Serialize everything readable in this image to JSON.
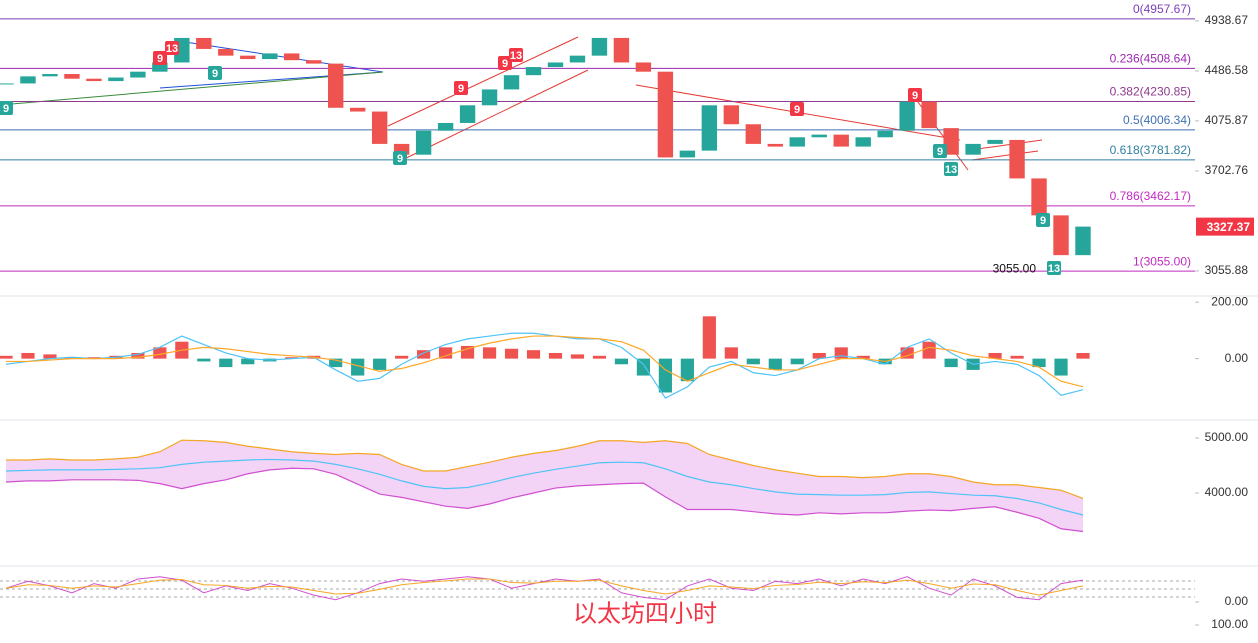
{
  "chart_data": [
    {
      "type": "candlestick",
      "log": true,
      "ylim": [
        2918,
        5141
      ],
      "yticks": [
        4938.67,
        4486.58,
        4075.87,
        3702.76,
        3055.88
      ],
      "values": [
        4380,
        4440,
        4460,
        4420,
        4400,
        4430,
        4480,
        4560,
        4780,
        4680,
        4620,
        4590,
        4640,
        4580,
        4550,
        4180,
        4150,
        3900,
        3820,
        4000,
        4060,
        4200,
        4330,
        4450,
        4520,
        4560,
        4620,
        4780,
        4560,
        4480,
        3800,
        3850,
        4200,
        4050,
        3900,
        3880,
        3950,
        3970,
        3880,
        3950,
        4000,
        4230,
        4020,
        3820,
        3900,
        3930,
        3650,
        3400,
        3150,
        3327.37
      ],
      "up_color": "#26a69a",
      "down_color": "#ef5350",
      "fib_levels": [
        {
          "value": 4957.67,
          "label": "0(4957.67)",
          "color": "#7b3fb8"
        },
        {
          "value": 4508.64,
          "label": "0.236(4508.64)",
          "color": "#9c27b0"
        },
        {
          "value": 4230.85,
          "label": "0.382(4230.85)",
          "color": "#8e3a8e"
        },
        {
          "value": 4006.34,
          "label": "0.5(4006.34)",
          "color": "#3f6fb5"
        },
        {
          "value": 3781.82,
          "label": "0.618(3781.82)",
          "color": "#2f7fa0"
        },
        {
          "value": 3462.17,
          "label": "0.786(3462.17)",
          "color": "#c02bc0"
        },
        {
          "value": 3055,
          "label": "1(3055.00)",
          "color": "#c02bc0"
        }
      ],
      "last_price": {
        "value": 3327.37,
        "label": "3327.37",
        "color": "#f23645"
      },
      "low": {
        "value": 3055,
        "label": "3055.00"
      },
      "markers": [
        {
          "label": "9",
          "color": "#f23645"
        },
        {
          "label": "13",
          "color": "#f23645"
        },
        {
          "label": "9",
          "color": "#26a69a"
        },
        {
          "label": "9",
          "color": "#26a69a"
        },
        {
          "label": "9",
          "color": "#26a69a"
        },
        {
          "label": "9",
          "color": "#f23645"
        },
        {
          "label": "9",
          "color": "#f23645"
        },
        {
          "label": "13",
          "color": "#f23645"
        },
        {
          "label": "9",
          "color": "#f23645"
        },
        {
          "label": "9",
          "color": "#f23645"
        },
        {
          "label": "9",
          "color": "#26a69a"
        },
        {
          "label": "13",
          "color": "#26a69a"
        },
        {
          "label": "9",
          "color": "#26a69a"
        },
        {
          "label": "13",
          "color": "#26a69a"
        }
      ]
    },
    {
      "type": "macd",
      "ylim": [
        -214,
        222
      ],
      "yticks": [
        {
          "value": 200,
          "label": "200.00"
        },
        {
          "value": 0,
          "label": "0.00"
        }
      ],
      "histogram": [
        10,
        20,
        15,
        5,
        5,
        10,
        20,
        40,
        60,
        -10,
        -30,
        -20,
        -10,
        5,
        10,
        -30,
        -60,
        -40,
        10,
        30,
        40,
        45,
        40,
        35,
        30,
        20,
        15,
        10,
        -20,
        -60,
        -120,
        -80,
        150,
        40,
        -20,
        -40,
        -20,
        20,
        40,
        10,
        -20,
        40,
        60,
        -30,
        -40,
        20,
        10,
        -30,
        -60,
        20
      ],
      "up_color": "#ef5350",
      "down_color": "#26a69a",
      "lines": [
        {
          "color": "#4fc3f7",
          "values": [
            -20,
            -10,
            0,
            5,
            0,
            5,
            15,
            40,
            80,
            50,
            20,
            0,
            -5,
            0,
            5,
            -40,
            -80,
            -70,
            -20,
            20,
            50,
            70,
            80,
            90,
            90,
            80,
            70,
            70,
            40,
            -20,
            -140,
            -100,
            -30,
            -10,
            -50,
            -60,
            -40,
            0,
            10,
            0,
            -20,
            40,
            70,
            20,
            -20,
            -10,
            -20,
            -60,
            -130,
            -110
          ]
        },
        {
          "color": "#ffa726",
          "values": [
            -10,
            -10,
            -5,
            0,
            0,
            0,
            5,
            15,
            30,
            40,
            35,
            25,
            15,
            10,
            5,
            -5,
            -25,
            -45,
            -35,
            -15,
            10,
            35,
            55,
            70,
            80,
            80,
            75,
            70,
            60,
            30,
            -40,
            -80,
            -50,
            -20,
            -30,
            -40,
            -40,
            -20,
            0,
            0,
            -10,
            10,
            40,
            30,
            10,
            0,
            -10,
            -30,
            -80,
            -100
          ]
        }
      ]
    },
    {
      "type": "bollinger",
      "ylim": [
        2691,
        5327
      ],
      "yticks": [
        {
          "value": 5000,
          "label": "5000.00"
        },
        {
          "value": 4000,
          "label": "4000.00"
        }
      ],
      "band_color": "#f3d4f7",
      "upper": {
        "color": "#f5a623",
        "values": [
          4600,
          4600,
          4620,
          4600,
          4600,
          4620,
          4650,
          4750,
          4960,
          4950,
          4920,
          4850,
          4800,
          4750,
          4720,
          4700,
          4720,
          4700,
          4520,
          4400,
          4400,
          4480,
          4560,
          4650,
          4720,
          4770,
          4850,
          4950,
          4950,
          4920,
          4950,
          4900,
          4700,
          4600,
          4500,
          4420,
          4360,
          4300,
          4300,
          4280,
          4300,
          4350,
          4350,
          4300,
          4200,
          4150,
          4150,
          4100,
          4050,
          3900
        ]
      },
      "middle": {
        "color": "#4fc3f7",
        "values": [
          4400,
          4410,
          4420,
          4420,
          4420,
          4430,
          4440,
          4460,
          4520,
          4560,
          4580,
          4600,
          4610,
          4600,
          4580,
          4520,
          4440,
          4340,
          4220,
          4120,
          4080,
          4100,
          4180,
          4280,
          4360,
          4430,
          4490,
          4550,
          4560,
          4550,
          4440,
          4300,
          4200,
          4150,
          4080,
          4020,
          3980,
          3970,
          3960,
          3960,
          3970,
          4010,
          4020,
          3990,
          3960,
          3950,
          3900,
          3820,
          3700,
          3600
        ]
      },
      "lower": {
        "color": "#d04fd0",
        "values": [
          4200,
          4220,
          4220,
          4240,
          4240,
          4240,
          4230,
          4170,
          4080,
          4170,
          4240,
          4350,
          4420,
          4450,
          4440,
          4340,
          4160,
          3980,
          3920,
          3840,
          3760,
          3720,
          3800,
          3910,
          4000,
          4090,
          4130,
          4150,
          4170,
          4180,
          3930,
          3700,
          3700,
          3700,
          3660,
          3620,
          3600,
          3640,
          3620,
          3640,
          3640,
          3670,
          3690,
          3680,
          3720,
          3750,
          3650,
          3540,
          3350,
          3300
        ]
      }
    },
    {
      "type": "kdj",
      "ylim": [
        156.5,
        -156.5
      ],
      "yticks": [
        {
          "value": 0,
          "label": "0.00"
        },
        {
          "value": 100,
          "label": "100.00"
        }
      ],
      "lines": [
        {
          "color": "#d04fd0",
          "values": [
            -60,
            -90,
            -70,
            -40,
            -80,
            -60,
            -100,
            -110,
            -95,
            -40,
            -70,
            -50,
            -80,
            -60,
            -30,
            -10,
            -40,
            -80,
            -100,
            -90,
            -100,
            -110,
            -100,
            -60,
            -80,
            -100,
            -90,
            -100,
            -40,
            -20,
            -10,
            -70,
            -100,
            -60,
            -50,
            -90,
            -80,
            -100,
            -70,
            -100,
            -80,
            -110,
            -60,
            -30,
            -100,
            -70,
            -20,
            -10,
            -80,
            -95
          ]
        },
        {
          "color": "#f5a623",
          "values": [
            -60,
            -75,
            -72,
            -60,
            -70,
            -65,
            -80,
            -95,
            -98,
            -75,
            -72,
            -60,
            -68,
            -65,
            -50,
            -35,
            -38,
            -55,
            -75,
            -85,
            -92,
            -100,
            -100,
            -85,
            -82,
            -90,
            -90,
            -95,
            -70,
            -50,
            -35,
            -50,
            -70,
            -65,
            -58,
            -72,
            -76,
            -86,
            -80,
            -88,
            -84,
            -95,
            -80,
            -60,
            -78,
            -75,
            -50,
            -30,
            -50,
            -70
          ]
        }
      ]
    }
  ],
  "caption": "以太坊四小时"
}
